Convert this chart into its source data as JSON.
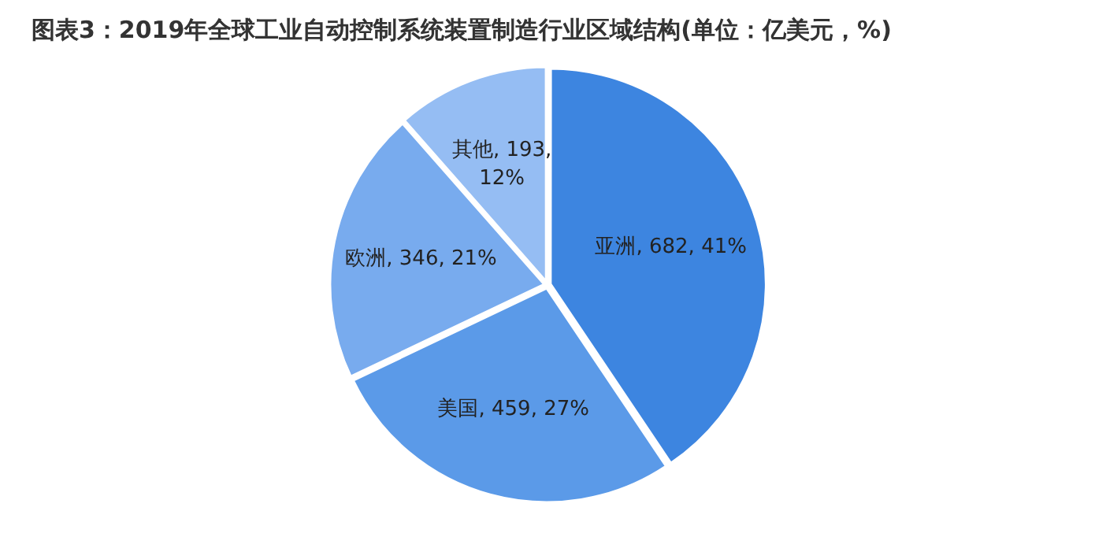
{
  "chart_data": {
    "type": "pie",
    "title": "图表3：2019年全球工业自动控制系统装置制造行业区域结构(单位：亿美元，%)",
    "categories": [
      "亚洲",
      "美国",
      "欧洲",
      "其他"
    ],
    "values": [
      682,
      459,
      346,
      193
    ],
    "colors": [
      "#3d85e0",
      "#5b9ae8",
      "#78abee",
      "#95bdf3"
    ],
    "value_labels": [
      ", 682, 41%",
      ", 459, 27%",
      ", 346, 21%",
      ", 193, 12%"
    ],
    "legend": false
  }
}
